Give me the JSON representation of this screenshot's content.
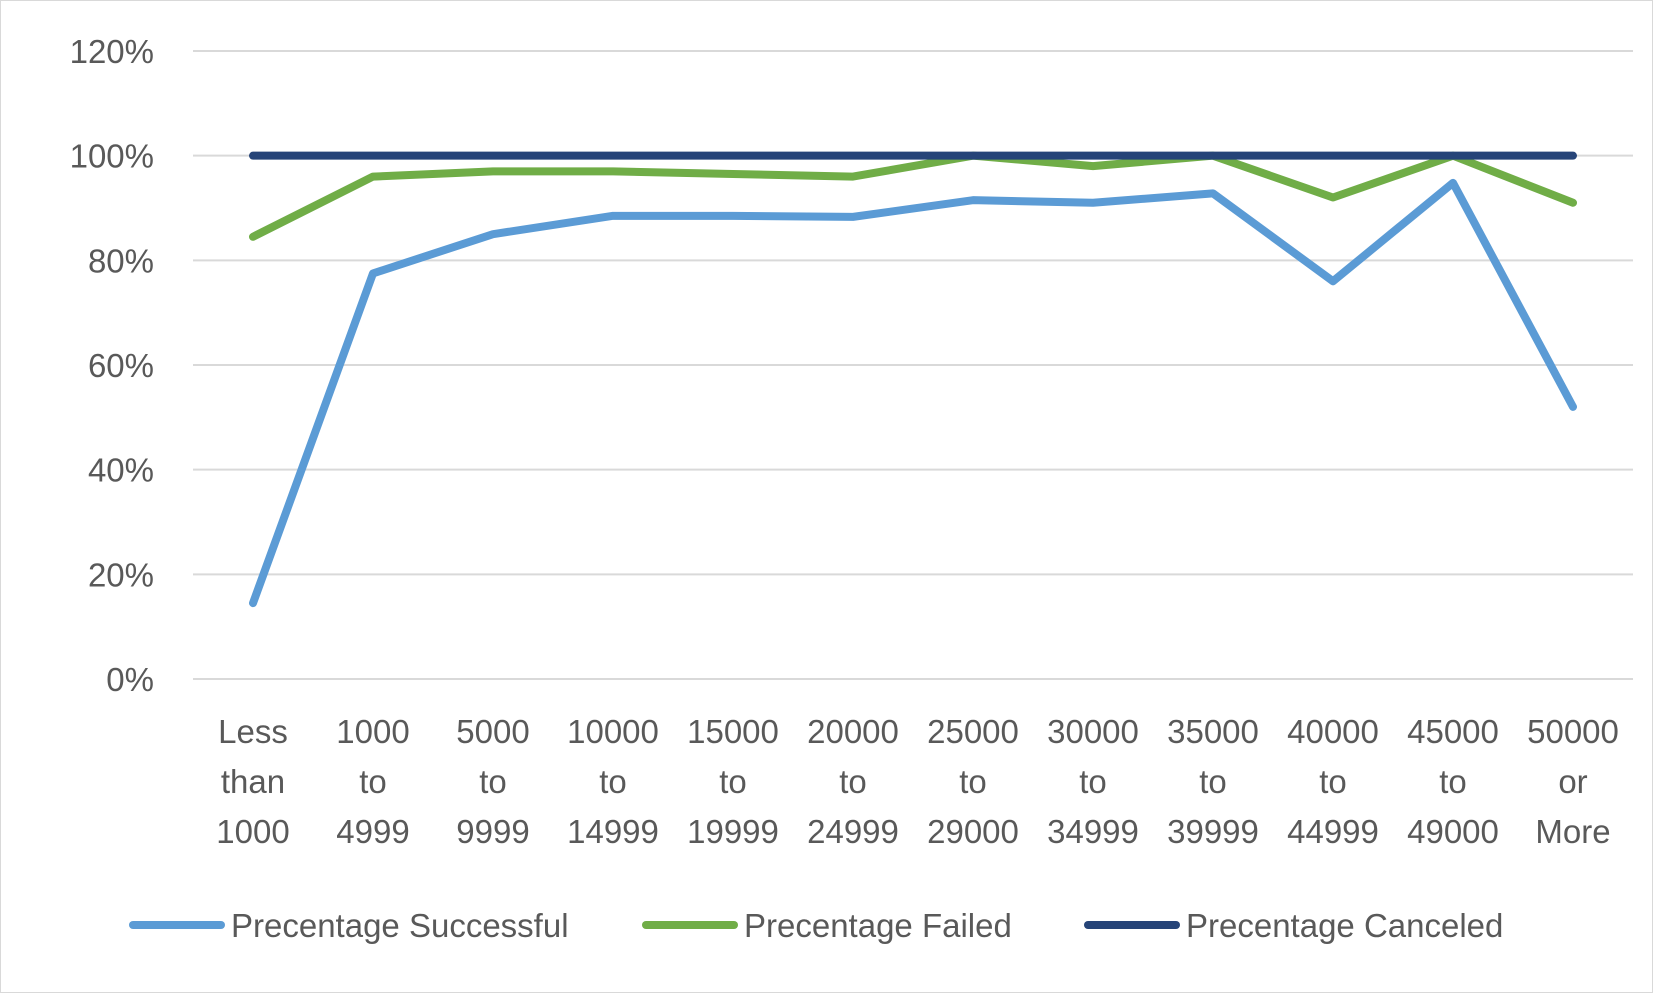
{
  "chart_data": {
    "type": "line",
    "title": "",
    "xlabel": "",
    "ylabel": "",
    "ylim": [
      0,
      1.2
    ],
    "y_ticks": [
      "0%",
      "20%",
      "40%",
      "60%",
      "80%",
      "100%",
      "120%"
    ],
    "y_tick_values": [
      0,
      0.2,
      0.4,
      0.6,
      0.8,
      1.0,
      1.2
    ],
    "grid": true,
    "legend_position": "bottom",
    "categories": [
      [
        "Less",
        "than",
        "1000"
      ],
      [
        "1000",
        "to",
        "4999"
      ],
      [
        "5000",
        "to",
        "9999"
      ],
      [
        "10000",
        "to",
        "14999"
      ],
      [
        "15000",
        "to",
        "19999"
      ],
      [
        "20000",
        "to",
        "24999"
      ],
      [
        "25000",
        "to",
        "29000"
      ],
      [
        "30000",
        "to",
        "34999"
      ],
      [
        "35000",
        "to",
        "39999"
      ],
      [
        "40000",
        "to",
        "44999"
      ],
      [
        "45000",
        "to",
        "49000"
      ],
      [
        "50000",
        "or",
        "More"
      ]
    ],
    "series": [
      {
        "name": "Precentage Successful",
        "color": "#5b9bd5",
        "values": [
          0.145,
          0.775,
          0.85,
          0.885,
          0.885,
          0.883,
          0.915,
          0.91,
          0.928,
          0.76,
          0.948,
          0.52
        ]
      },
      {
        "name": "Precentage Failed",
        "color": "#70ad47",
        "values": [
          0.845,
          0.96,
          0.97,
          0.97,
          0.965,
          0.96,
          1.0,
          0.98,
          1.0,
          0.92,
          1.0,
          0.91
        ]
      },
      {
        "name": "Precentage Canceled",
        "color": "#264478",
        "values": [
          1.0,
          1.0,
          1.0,
          1.0,
          1.0,
          1.0,
          1.0,
          1.0,
          1.0,
          1.0,
          1.0,
          1.0
        ]
      }
    ]
  }
}
